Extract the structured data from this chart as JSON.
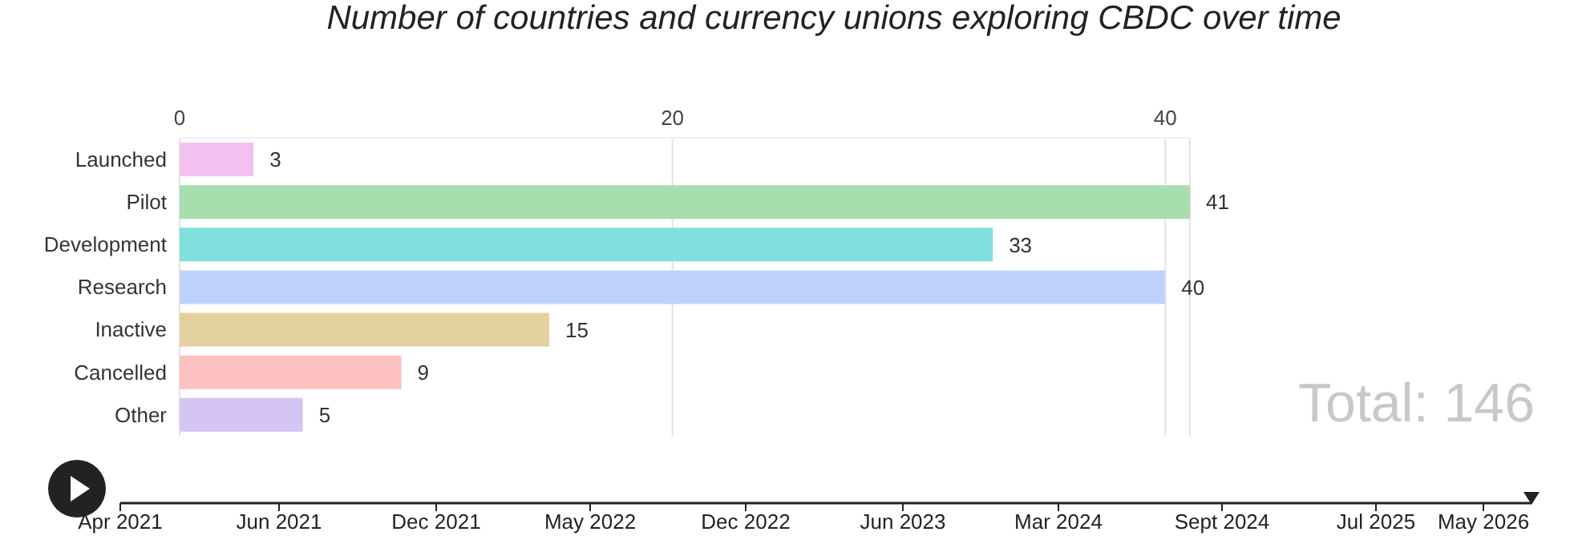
{
  "chart_data": {
    "type": "bar",
    "orientation": "horizontal",
    "title": "Number of countries and currency unions exploring CBDC over time",
    "categories": [
      "Launched",
      "Pilot",
      "Development",
      "Research",
      "Inactive",
      "Cancelled",
      "Other"
    ],
    "values": [
      3,
      41,
      33,
      40,
      15,
      9,
      5
    ],
    "colors": [
      "#f4c0f0",
      "#a8deae",
      "#7fe0de",
      "#bed3fb",
      "#e2d09e",
      "#ffc0c0",
      "#d5c5f5"
    ],
    "xlim": [
      0,
      41
    ],
    "xticks": [
      0,
      20,
      40
    ],
    "grid": "x",
    "data_labels": true,
    "annotations": [
      "Total: 146",
      "Apr 2021",
      "Jun 2021",
      "Dec 2021",
      "May 2022",
      "Dec 2022",
      "Jun 2023",
      "Mar 2024",
      "Sept 2024",
      "Jul 2025",
      "May 2026"
    ]
  }
}
